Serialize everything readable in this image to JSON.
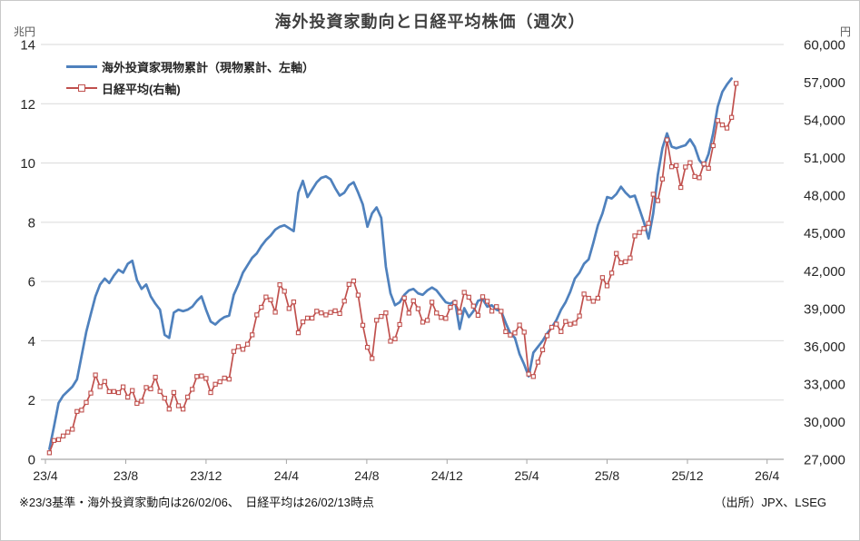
{
  "title": "海外投資家動向と日経平均株価（週次）",
  "footnote": "※23/3基準・海外投資家動向は26/02/06、　日経平均は26/02/13時点",
  "source": "（出所）JPX、LSEG",
  "colors": {
    "foreign_investors_line": "#4F81BD",
    "nikkei_line": "#C0504D",
    "gridline": "#D9D9D9",
    "axis": "#A6A6A6",
    "title_text": "#3F3F3F"
  },
  "left_axis": {
    "unit": "兆円",
    "min": 0,
    "max": 14,
    "step": 2,
    "tick_labels": [
      "0",
      "2",
      "4",
      "6",
      "8",
      "10",
      "12",
      "14"
    ]
  },
  "right_axis": {
    "unit": "円",
    "min": 27000,
    "max": 60000,
    "step": 3000,
    "tick_labels": [
      "27,000",
      "30,000",
      "33,000",
      "36,000",
      "39,000",
      "42,000",
      "45,000",
      "48,000",
      "51,000",
      "54,000",
      "57,000",
      "60,000"
    ]
  },
  "x_axis": {
    "tick_labels": [
      "23/4",
      "23/8",
      "23/12",
      "24/4",
      "24/8",
      "24/12",
      "25/4",
      "25/8",
      "25/12",
      "26/4"
    ],
    "tick_positions": [
      -0.86,
      16.57,
      34.0,
      51.43,
      68.86,
      86.29,
      103.57,
      121.0,
      138.43,
      155.71
    ]
  },
  "legend": [
    {
      "label": "海外投資家現物累計（現物累計、左軸）",
      "color": "#4F81BD",
      "marker": "line"
    },
    {
      "label": "日経平均(右軸)",
      "color": "#C0504D",
      "marker": "line-square"
    }
  ],
  "chart_data": {
    "type": "line",
    "title": "海外投資家動向と日経平均株価（週次）",
    "x_unit": "week",
    "grid": true,
    "legend_position": "top-left",
    "ylim_left": [
      0,
      14
    ],
    "ylim_right": [
      27000,
      60000
    ],
    "dates": [
      "23/04/07",
      "23/04/14",
      "23/04/21",
      "23/04/28",
      "23/05/05",
      "23/05/12",
      "23/05/19",
      "23/05/26",
      "23/06/02",
      "23/06/09",
      "23/06/16",
      "23/06/23",
      "23/06/30",
      "23/07/07",
      "23/07/14",
      "23/07/21",
      "23/07/28",
      "23/08/04",
      "23/08/11",
      "23/08/18",
      "23/08/25",
      "23/09/01",
      "23/09/08",
      "23/09/15",
      "23/09/22",
      "23/09/29",
      "23/10/06",
      "23/10/13",
      "23/10/20",
      "23/10/27",
      "23/11/03",
      "23/11/10",
      "23/11/17",
      "23/11/24",
      "23/12/01",
      "23/12/08",
      "23/12/15",
      "23/12/22",
      "23/12/29",
      "24/01/05",
      "24/01/12",
      "24/01/19",
      "24/01/26",
      "24/02/02",
      "24/02/09",
      "24/02/16",
      "24/02/23",
      "24/03/01",
      "24/03/08",
      "24/03/15",
      "24/03/22",
      "24/03/29",
      "24/04/05",
      "24/04/12",
      "24/04/19",
      "24/04/26",
      "24/05/03",
      "24/05/10",
      "24/05/17",
      "24/05/24",
      "24/05/31",
      "24/06/07",
      "24/06/14",
      "24/06/21",
      "24/06/28",
      "24/07/05",
      "24/07/12",
      "24/07/19",
      "24/07/26",
      "24/08/02",
      "24/08/09",
      "24/08/16",
      "24/08/23",
      "24/08/30",
      "24/09/06",
      "24/09/13",
      "24/09/20",
      "24/09/27",
      "24/10/04",
      "24/10/11",
      "24/10/18",
      "24/10/25",
      "24/11/01",
      "24/11/08",
      "24/11/15",
      "24/11/22",
      "24/11/29",
      "24/12/06",
      "24/12/13",
      "24/12/20",
      "24/12/27",
      "25/01/03",
      "25/01/10",
      "25/01/17",
      "25/01/24",
      "25/01/31",
      "25/02/07",
      "25/02/14",
      "25/02/21",
      "25/02/28",
      "25/03/07",
      "25/03/14",
      "25/03/21",
      "25/03/28",
      "25/04/04",
      "25/04/11",
      "25/04/18",
      "25/04/25",
      "25/05/02",
      "25/05/09",
      "25/05/16",
      "25/05/23",
      "25/05/30",
      "25/06/06",
      "25/06/13",
      "25/06/20",
      "25/06/27",
      "25/07/04",
      "25/07/11",
      "25/07/18",
      "25/07/25",
      "25/08/01",
      "25/08/08",
      "25/08/15",
      "25/08/22",
      "25/08/29",
      "25/09/05",
      "25/09/12",
      "25/09/19",
      "25/09/26",
      "25/10/03",
      "25/10/10",
      "25/10/17",
      "25/10/24",
      "25/10/31",
      "25/11/07",
      "25/11/14",
      "25/11/21",
      "25/11/28",
      "25/12/05",
      "25/12/12",
      "25/12/19",
      "25/12/26",
      "26/01/02",
      "26/01/09",
      "26/01/16",
      "26/01/23",
      "26/01/30",
      "26/02/06",
      "26/02/13"
    ],
    "series": [
      {
        "name": "海外投資家現物累計（現物累計、左軸）",
        "axis": "left",
        "unit": "兆円",
        "color": "#4F81BD",
        "last_date": "26/02/06",
        "values": [
          0.35,
          1.1,
          1.9,
          2.15,
          2.3,
          2.45,
          2.7,
          3.5,
          4.3,
          4.9,
          5.5,
          5.9,
          6.1,
          5.95,
          6.2,
          6.4,
          6.3,
          6.6,
          6.7,
          6.05,
          5.75,
          5.9,
          5.5,
          5.25,
          5.05,
          4.2,
          4.1,
          4.95,
          5.05,
          5.0,
          5.05,
          5.15,
          5.35,
          5.5,
          5.05,
          4.65,
          4.55,
          4.7,
          4.8,
          4.85,
          5.55,
          5.9,
          6.3,
          6.55,
          6.8,
          6.95,
          7.2,
          7.4,
          7.55,
          7.75,
          7.85,
          7.9,
          7.8,
          7.7,
          9.0,
          9.4,
          8.85,
          9.1,
          9.35,
          9.5,
          9.55,
          9.45,
          9.15,
          8.9,
          9.0,
          9.25,
          9.35,
          9.0,
          8.6,
          7.85,
          8.3,
          8.5,
          8.15,
          6.5,
          5.6,
          5.2,
          5.3,
          5.55,
          5.7,
          5.75,
          5.6,
          5.55,
          5.7,
          5.8,
          5.7,
          5.5,
          5.3,
          5.25,
          5.35,
          4.4,
          5.1,
          4.8,
          5.0,
          5.35,
          5.4,
          5.15,
          5.2,
          5.05,
          5.0,
          4.6,
          4.25,
          4.1,
          3.55,
          3.2,
          2.8,
          3.6,
          3.8,
          4.0,
          4.25,
          4.45,
          4.7,
          5.05,
          5.3,
          5.65,
          6.1,
          6.3,
          6.6,
          6.75,
          7.3,
          7.9,
          8.3,
          8.85,
          8.8,
          8.95,
          9.2,
          9.0,
          8.85,
          8.9,
          8.45,
          8.0,
          7.45,
          8.3,
          9.6,
          10.5,
          11.0,
          10.55,
          10.5,
          10.55,
          10.6,
          10.8,
          10.55,
          10.1,
          9.9,
          10.3,
          11.0,
          11.9,
          12.4,
          12.65,
          12.85
        ]
      },
      {
        "name": "日経平均(右軸)",
        "axis": "right",
        "unit": "円",
        "color": "#C0504D",
        "last_date": "26/02/13",
        "values": [
          27518,
          28493,
          28564,
          28856,
          29158,
          29388,
          30808,
          30916,
          31524,
          32265,
          33706,
          32781,
          33189,
          32388,
          32391,
          32304,
          32759,
          31949,
          32474,
          31451,
          31624,
          32711,
          32606,
          33533,
          32402,
          31858,
          30995,
          32316,
          31259,
          30992,
          31950,
          32568,
          33585,
          33626,
          33432,
          32308,
          32971,
          33170,
          33464,
          33377,
          35577,
          35963,
          35751,
          36158,
          36897,
          38487,
          39098,
          39910,
          39689,
          38708,
          40888,
          40369,
          38992,
          39524,
          37068,
          37935,
          38236,
          38229,
          38787,
          38646,
          38488,
          38683,
          38814,
          38596,
          39583,
          40912,
          41190,
          40064,
          37667,
          35909,
          35025,
          38062,
          38364,
          38648,
          36391,
          36582,
          37724,
          39830,
          38636,
          39606,
          38982,
          37914,
          38053,
          39500,
          38643,
          38284,
          38208,
          39091,
          39470,
          38702,
          40281,
          39895,
          39190,
          38451,
          39932,
          39572,
          38787,
          39149,
          38776,
          37156,
          36887,
          37053,
          37677,
          37120,
          33781,
          33586,
          34730,
          35706,
          36830,
          37503,
          37754,
          37160,
          37965,
          37742,
          37834,
          38403,
          40151,
          39811,
          39570,
          39819,
          41456,
          40800,
          41820,
          43378,
          42633,
          42718,
          43018,
          44768,
          45045,
          45355,
          45770,
          48088,
          47582,
          49299,
          52411,
          50276,
          50376,
          48626,
          50253,
          50600,
          49500,
          49400,
          50500,
          50150,
          51950,
          53950,
          53600,
          53350,
          54200,
          56900
        ]
      }
    ]
  }
}
